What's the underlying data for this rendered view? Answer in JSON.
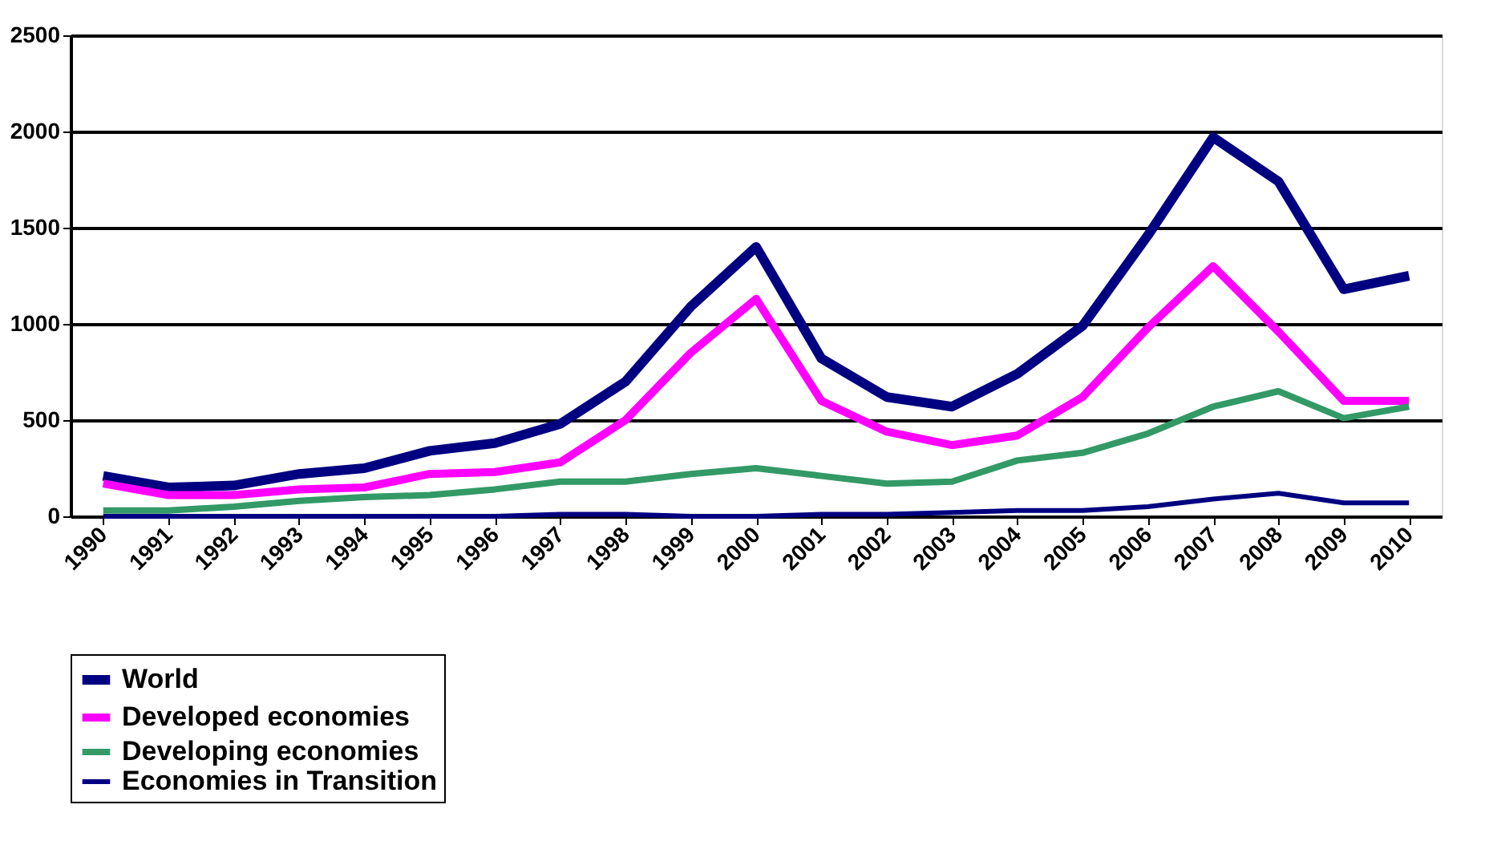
{
  "chart_data": {
    "type": "line",
    "categories": [
      "1990",
      "1991",
      "1992",
      "1993",
      "1994",
      "1995",
      "1996",
      "1997",
      "1998",
      "1999",
      "2000",
      "2001",
      "2002",
      "2003",
      "2004",
      "2005",
      "2006",
      "2007",
      "2008",
      "2009",
      "2010"
    ],
    "series": [
      {
        "name": "World",
        "color": "#000080",
        "values": [
          210,
          150,
          160,
          220,
          250,
          340,
          380,
          480,
          700,
          1090,
          1400,
          820,
          620,
          570,
          740,
          990,
          1460,
          1970,
          1740,
          1180,
          1250
        ]
      },
      {
        "name": "Developed economies",
        "color": "#ff00ff",
        "values": [
          170,
          110,
          110,
          140,
          150,
          220,
          230,
          280,
          500,
          850,
          1130,
          600,
          440,
          370,
          420,
          620,
          980,
          1300,
          960,
          600,
          600
        ]
      },
      {
        "name": "Developing economies",
        "color": "#339966",
        "values": [
          30,
          30,
          50,
          80,
          100,
          110,
          140,
          180,
          180,
          220,
          250,
          210,
          170,
          180,
          290,
          330,
          430,
          570,
          650,
          510,
          570
        ]
      },
      {
        "name": "Economies in Transition",
        "color": "#000080",
        "values": [
          0,
          0,
          0,
          0,
          0,
          0,
          0,
          10,
          10,
          0,
          0,
          10,
          10,
          20,
          30,
          30,
          50,
          90,
          120,
          70,
          70
        ]
      }
    ],
    "ylim": [
      0,
      2500
    ],
    "yticks": [
      0,
      500,
      1000,
      1500,
      2000,
      2500
    ],
    "grid": "y",
    "legend": "bottom",
    "marker": "none",
    "line_style": "solid"
  }
}
